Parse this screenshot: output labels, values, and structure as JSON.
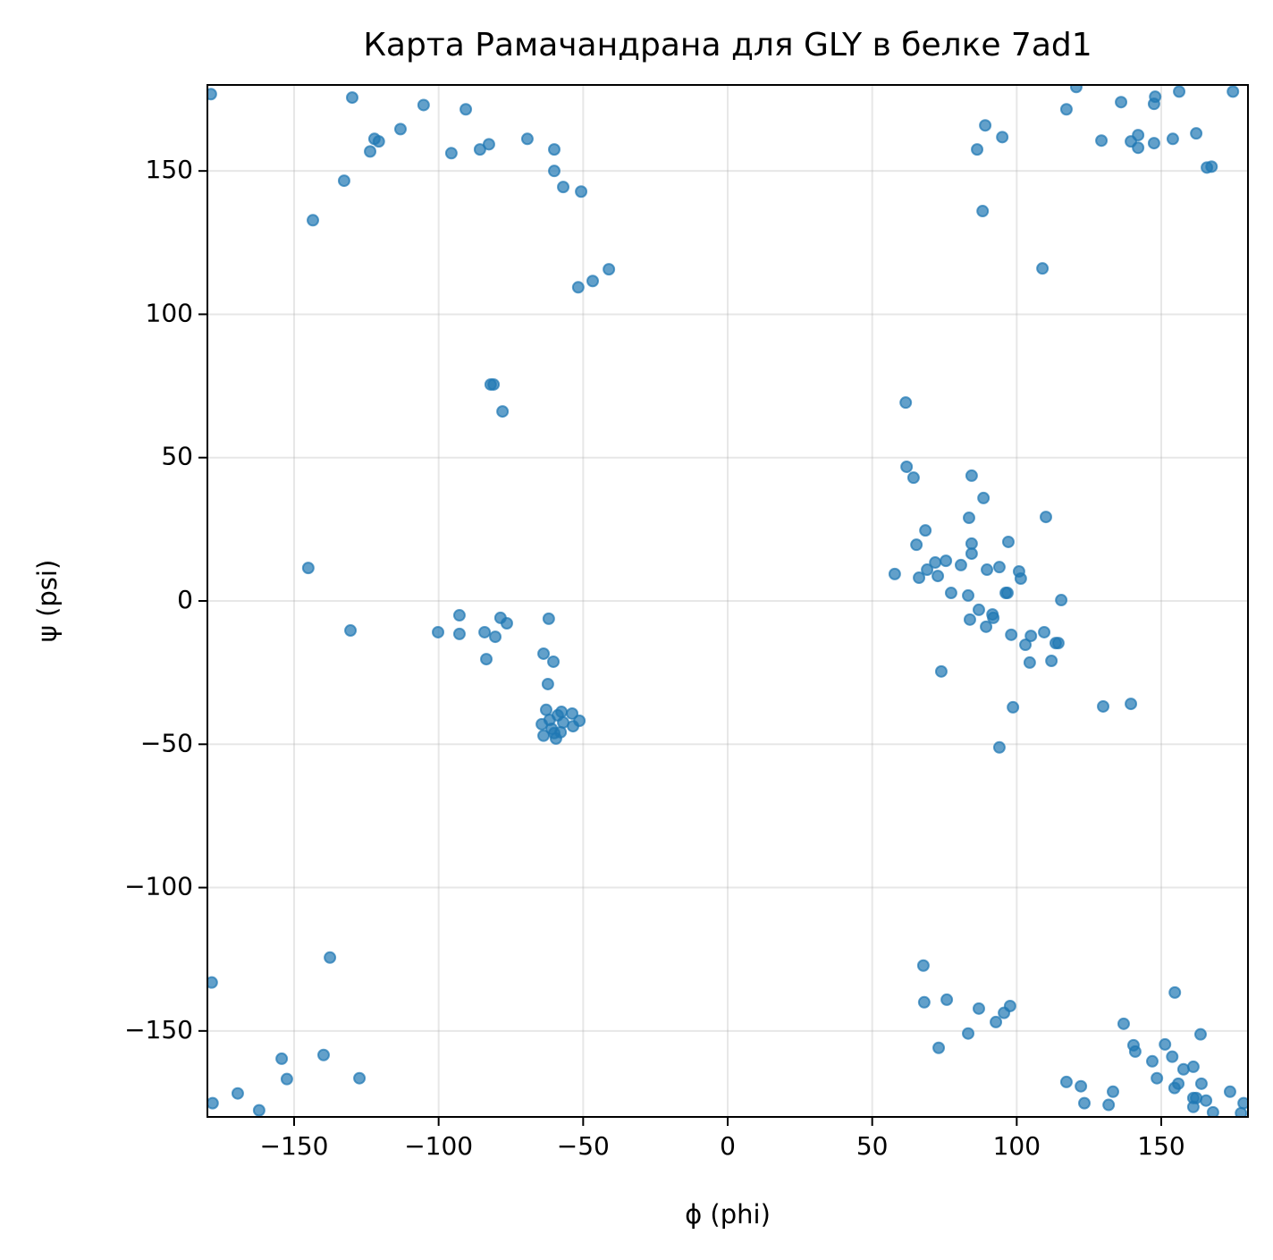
{
  "chart_data": {
    "type": "scatter",
    "title": "Карта Рамачандрана для GLY в белке 7ad1",
    "xlabel": "ϕ (phi)",
    "ylabel": "ψ (psi)",
    "color": "#1f77b4",
    "grid": true,
    "xlim": [
      -180,
      180
    ],
    "ylim": [
      -180,
      180
    ],
    "xticks": [
      {
        "value": -150,
        "label": "−150"
      },
      {
        "value": -100,
        "label": "−100"
      },
      {
        "value": -50,
        "label": "−50"
      },
      0,
      50,
      100,
      150
    ],
    "yticks": [
      {
        "value": -150,
        "label": "−150"
      },
      {
        "value": -100,
        "label": "−100"
      },
      {
        "value": -50,
        "label": "−50"
      },
      0,
      50,
      100,
      150
    ],
    "x": [
      -178.8,
      -129.9,
      -105.2,
      -90.6,
      -113.2,
      -122.2,
      -120.7,
      -123.7,
      -95.6,
      -85.7,
      -82.6,
      -69.3,
      -60,
      -60,
      -56.9,
      -50.7,
      -132.7,
      -143.5,
      -41.1,
      -46.7,
      -51.7,
      -82,
      -81,
      -77.9,
      120.6,
      117.2,
      136.1,
      147.9,
      147.5,
      156.2,
      174.8,
      89.1,
      95,
      86.3,
      129.3,
      139.5,
      142,
      142,
      147.5,
      154,
      162.1,
      165.8,
      167.4,
      88.2,
      108.9,
      61.6,
      61.9,
      64.3,
      84.4,
      88.5,
      110.1,
      83.5,
      68.4,
      97.1,
      65.3,
      84.4,
      84.4,
      75.5,
      71.8,
      69,
      80.7,
      89.7,
      94,
      100.8,
      101.4,
      57.8,
      66.2,
      72.7,
      96.2,
      96.8,
      77.3,
      115.4,
      86.9,
      83.2,
      91.6,
      91.9,
      83.8,
      89.4,
      98.1,
      109.5,
      104.9,
      103,
      113.5,
      114.4,
      104.5,
      112,
      73.9,
      98.7,
      129.9,
      139.5,
      94,
      -145.1,
      -130.5,
      -100.2,
      -92.8,
      -92.8,
      -84.1,
      -80.4,
      -78.6,
      -76.4,
      -61.9,
      -83.5,
      -63.7,
      -60.3,
      -62.2,
      -62.8,
      -64.3,
      -63.7,
      -59.4,
      -57.8,
      -57.5,
      -53.8,
      -51.3,
      -53.5,
      -56.9,
      -60.9,
      -61.6,
      -58.8,
      -60,
      -178.5,
      -137.6,
      -178.2,
      -169.5,
      -162.1,
      -154.3,
      -152.5,
      -139.8,
      -127.4,
      67.7,
      68,
      75.8,
      86.9,
      97.7,
      95.6,
      92.8,
      83.2,
      73,
      154.7,
      137,
      163.6,
      140.4,
      141,
      151.3,
      153.8,
      146.9,
      157.7,
      161.1,
      148.5,
      117.2,
      122.2,
      133.3,
      123.4,
      131.8,
      155.9,
      154.6,
      163.9,
      165.5,
      161.1,
      162.1,
      161.1,
      167.9,
      173.8,
      178.5,
      177.6
    ],
    "values": [
      176.8,
      175.6,
      173,
      171.5,
      164.6,
      161.2,
      160.3,
      156.8,
      156.2,
      157.5,
      159.3,
      161.2,
      157.5,
      150,
      144.4,
      142.8,
      146.6,
      132.8,
      115.7,
      111.6,
      109.4,
      75.5,
      75.5,
      66.1,
      179.3,
      171.5,
      174,
      175.9,
      173.4,
      177.7,
      177.7,
      165.9,
      161.8,
      157.5,
      160.6,
      160.3,
      162.5,
      158.1,
      159.7,
      161.2,
      163.1,
      151.2,
      151.5,
      136,
      116,
      69.2,
      46.8,
      43,
      43.7,
      35.9,
      29.3,
      29,
      24.6,
      20.6,
      19.6,
      20,
      16.5,
      14,
      13.4,
      10.9,
      12.5,
      10.9,
      11.8,
      10.3,
      7.8,
      9.4,
      8.1,
      8.7,
      2.8,
      2.8,
      2.8,
      0.3,
      -3.1,
      1.9,
      -4.7,
      -5.9,
      -6.5,
      -9,
      -11.8,
      -10.9,
      -12.2,
      -15.3,
      -14.7,
      -14.7,
      -21.5,
      -20.9,
      -24.6,
      -37.1,
      -36.8,
      -35.9,
      -51.1,
      11.5,
      -10.3,
      -10.9,
      -5,
      -11.5,
      -10.9,
      -12.5,
      -5.9,
      -7.8,
      -6.2,
      -20.3,
      -18.4,
      -21.2,
      -29,
      -38,
      -43,
      -47,
      -48,
      -45.8,
      -38.7,
      -39.3,
      -41.8,
      -43.7,
      -42.4,
      -44.6,
      -41.5,
      -39.9,
      -46.1,
      -133.1,
      -124.4,
      -175.2,
      -171.8,
      -177.7,
      -159.7,
      -166.8,
      -158.4,
      -166.5,
      -127.2,
      -140,
      -139.1,
      -142.2,
      -141.3,
      -143.7,
      -146.9,
      -150.9,
      -155.9,
      -136.6,
      -147.5,
      -151.2,
      -155,
      -157.2,
      -154.7,
      -159,
      -160.6,
      -163.4,
      -162.5,
      -166.5,
      -167.8,
      -169.3,
      -171.2,
      -175.2,
      -175.8,
      -168.4,
      -169.9,
      -168.4,
      -174.3,
      -173.4,
      -173.4,
      -176.5,
      -178.4,
      -171.2,
      -175.2,
      -178.7
    ]
  }
}
